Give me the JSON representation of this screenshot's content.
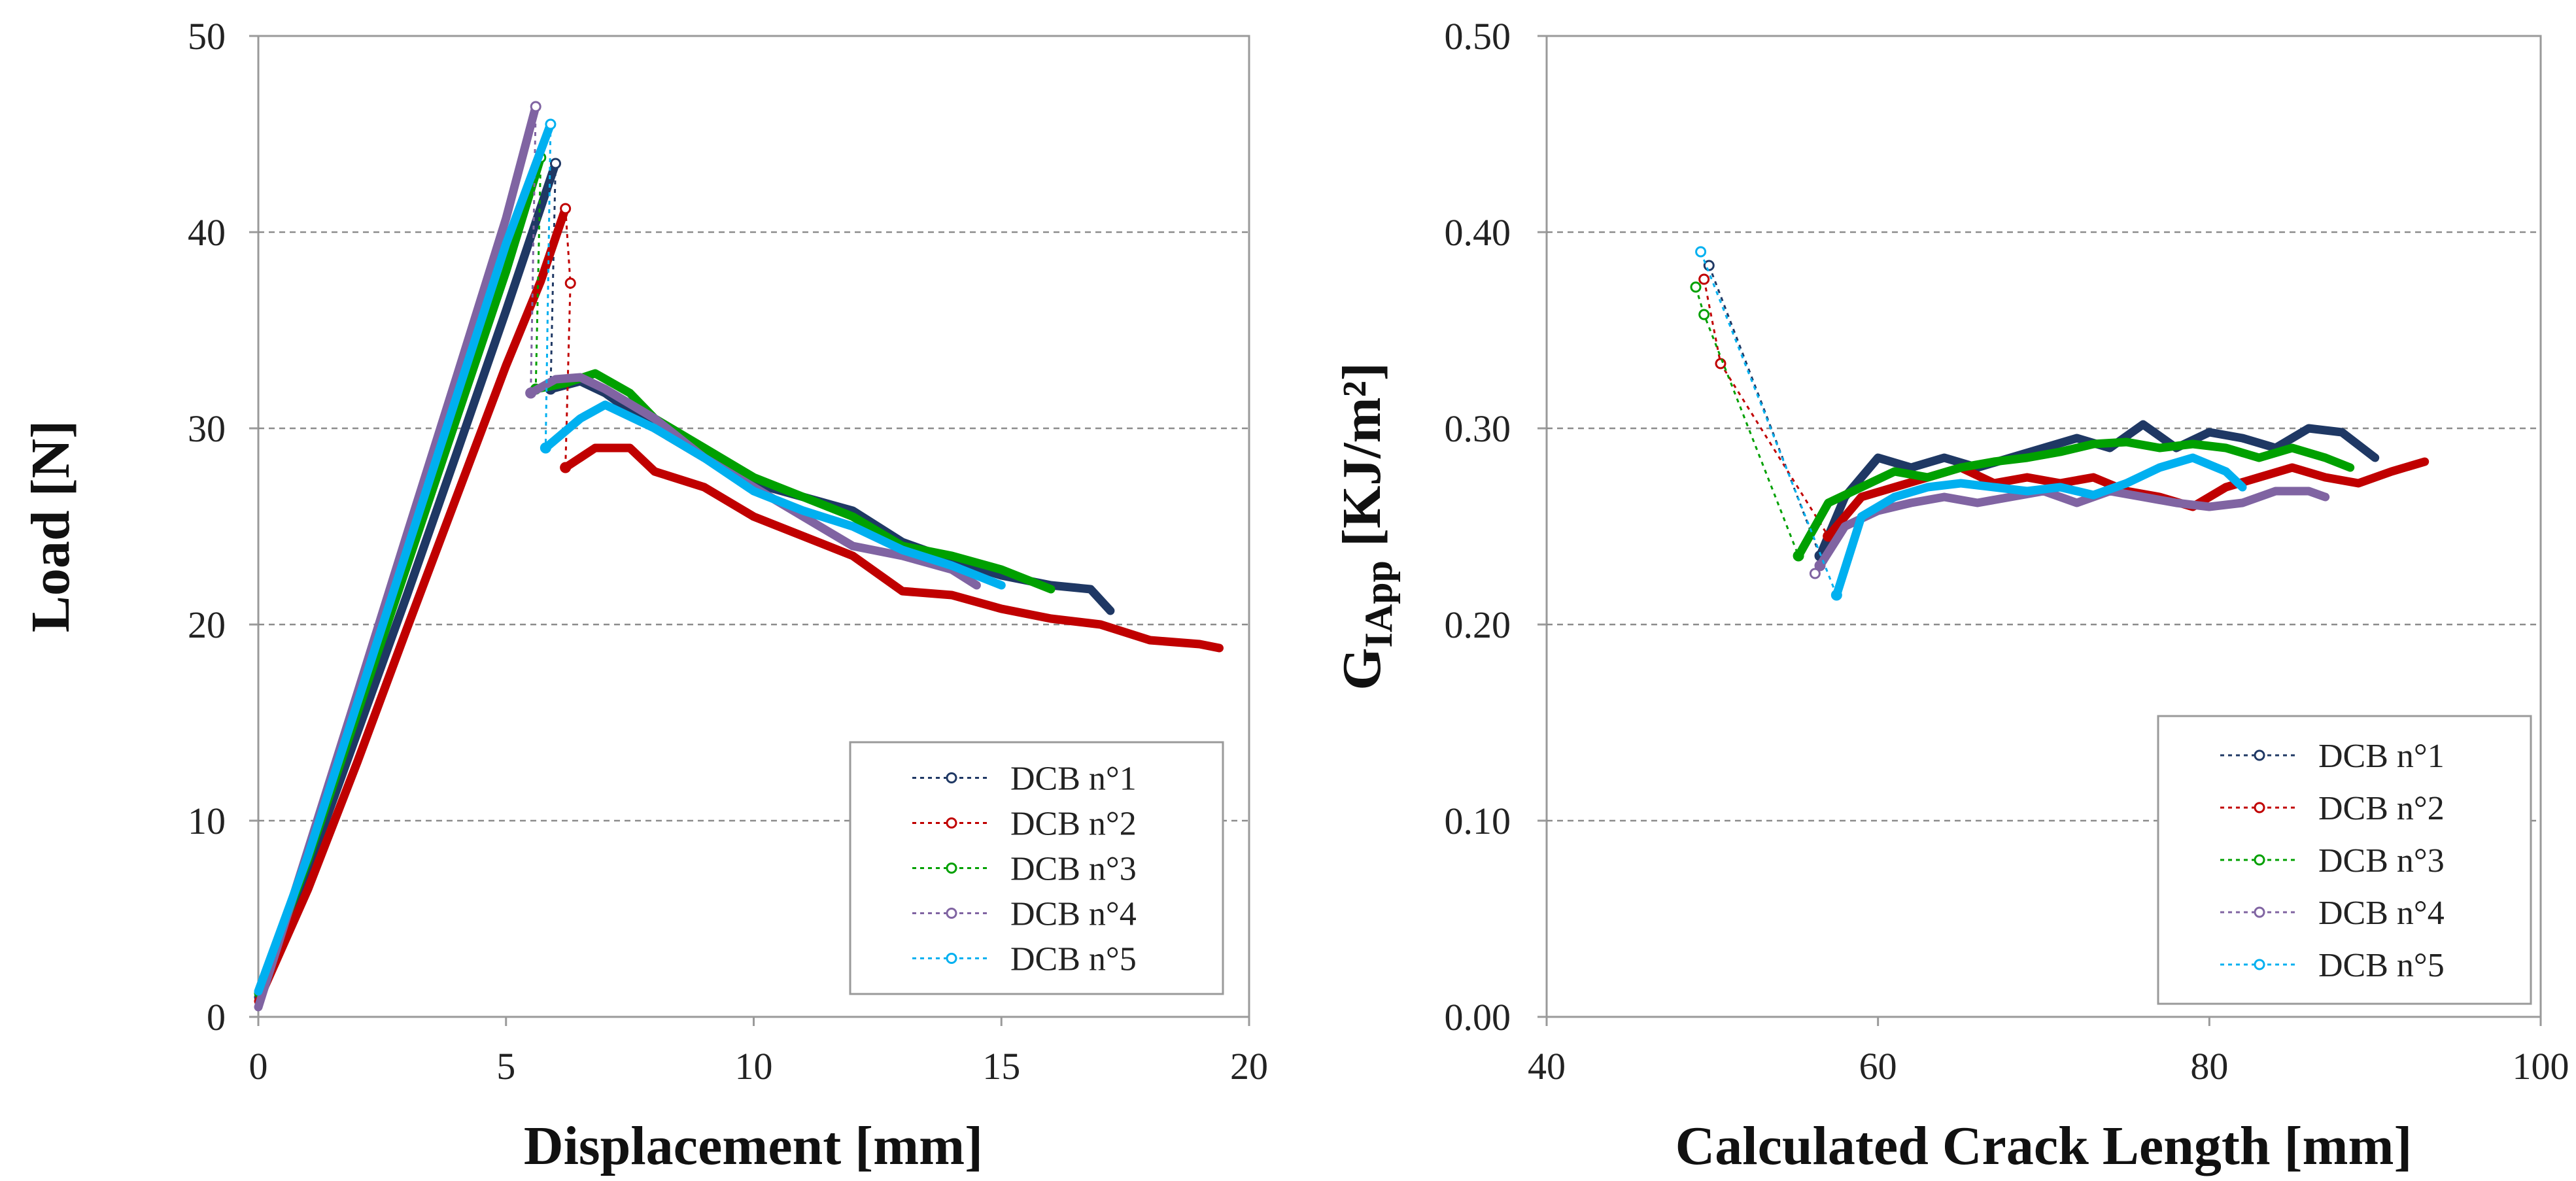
{
  "chart_data": [
    {
      "type": "line",
      "title": "",
      "xlabel": "Displacement [mm]",
      "ylabel": "Load [N]",
      "xlim": [
        0,
        20
      ],
      "ylim": [
        0,
        50
      ],
      "xticks": [
        0,
        5,
        10,
        15,
        20
      ],
      "yticks": [
        0,
        10,
        20,
        30,
        40,
        50
      ],
      "xtick_labels": [
        "0",
        "5",
        "10",
        "15",
        "20"
      ],
      "ytick_labels": [
        "0",
        "10",
        "20",
        "30",
        "40",
        "50"
      ],
      "grid": "horizontal dashed",
      "legend_position": "bottom-right",
      "series": [
        {
          "name": "DCB n°1",
          "color": "#1f3864",
          "loading": [
            [
              0.0,
              1.0
            ],
            [
              1.0,
              7.5
            ],
            [
              2.0,
              14.5
            ],
            [
              3.0,
              21.5
            ],
            [
              4.0,
              28.7
            ],
            [
              5.0,
              36.0
            ],
            [
              5.6,
              40.5
            ],
            [
              6.0,
              43.5
            ]
          ],
          "drop": [
            [
              6.0,
              43.5
            ],
            [
              5.9,
              32.0
            ]
          ],
          "propagation": [
            [
              5.9,
              32.0
            ],
            [
              6.5,
              32.4
            ],
            [
              7.0,
              31.8
            ],
            [
              8.0,
              30.0
            ],
            [
              9.0,
              28.5
            ],
            [
              10.0,
              27.2
            ],
            [
              11.0,
              26.5
            ],
            [
              12.0,
              25.8
            ],
            [
              13.0,
              24.2
            ],
            [
              14.0,
              23.3
            ],
            [
              15.0,
              22.5
            ],
            [
              16.0,
              22.0
            ],
            [
              16.8,
              21.8
            ],
            [
              17.2,
              20.7
            ]
          ]
        },
        {
          "name": "DCB n°2",
          "color": "#c00000",
          "loading": [
            [
              0.0,
              0.8
            ],
            [
              1.0,
              6.5
            ],
            [
              2.0,
              13.0
            ],
            [
              3.0,
              19.8
            ],
            [
              4.0,
              26.5
            ],
            [
              5.0,
              33.2
            ],
            [
              5.7,
              37.5
            ],
            [
              6.2,
              41.2
            ]
          ],
          "drop": [
            [
              6.2,
              41.2
            ],
            [
              6.3,
              37.4
            ],
            [
              6.2,
              28.0
            ]
          ],
          "propagation": [
            [
              6.2,
              28.0
            ],
            [
              6.8,
              29.0
            ],
            [
              7.5,
              29.0
            ],
            [
              8.0,
              27.8
            ],
            [
              9.0,
              27.0
            ],
            [
              10.0,
              25.5
            ],
            [
              11.0,
              24.5
            ],
            [
              12.0,
              23.5
            ],
            [
              13.0,
              21.7
            ],
            [
              14.0,
              21.5
            ],
            [
              15.0,
              20.8
            ],
            [
              16.0,
              20.3
            ],
            [
              17.0,
              20.0
            ],
            [
              18.0,
              19.2
            ],
            [
              19.0,
              19.0
            ],
            [
              19.4,
              18.8
            ]
          ]
        },
        {
          "name": "DCB n°3",
          "color": "#00a000",
          "loading": [
            [
              0.0,
              1.2
            ],
            [
              1.0,
              8.0
            ],
            [
              2.0,
              15.5
            ],
            [
              3.0,
              23.0
            ],
            [
              4.0,
              30.5
            ],
            [
              5.0,
              38.0
            ],
            [
              5.7,
              43.8
            ]
          ],
          "drop": [
            [
              5.7,
              43.8
            ],
            [
              5.6,
              32.0
            ]
          ],
          "propagation": [
            [
              5.6,
              32.0
            ],
            [
              6.2,
              32.3
            ],
            [
              6.8,
              32.8
            ],
            [
              7.5,
              31.8
            ],
            [
              8.0,
              30.5
            ],
            [
              9.0,
              29.0
            ],
            [
              10.0,
              27.5
            ],
            [
              11.0,
              26.5
            ],
            [
              12.0,
              25.5
            ],
            [
              13.0,
              24.0
            ],
            [
              14.0,
              23.5
            ],
            [
              15.0,
              22.8
            ],
            [
              16.0,
              21.8
            ]
          ]
        },
        {
          "name": "DCB n°4",
          "color": "#8064a2",
          "loading": [
            [
              0.0,
              0.5
            ],
            [
              1.0,
              8.5
            ],
            [
              2.0,
              16.5
            ],
            [
              3.0,
              24.6
            ],
            [
              4.0,
              32.6
            ],
            [
              5.0,
              40.7
            ],
            [
              5.6,
              46.4
            ]
          ],
          "drop": [
            [
              5.6,
              46.4
            ],
            [
              5.5,
              31.8
            ]
          ],
          "propagation": [
            [
              5.5,
              31.8
            ],
            [
              6.0,
              32.5
            ],
            [
              6.5,
              32.6
            ],
            [
              7.0,
              32.0
            ],
            [
              8.0,
              30.5
            ],
            [
              9.0,
              28.5
            ],
            [
              10.0,
              27.0
            ],
            [
              11.0,
              25.5
            ],
            [
              12.0,
              24.0
            ],
            [
              13.0,
              23.5
            ],
            [
              14.0,
              22.8
            ],
            [
              14.5,
              22.0
            ]
          ]
        },
        {
          "name": "DCB n°5",
          "color": "#00b0f0",
          "loading": [
            [
              0.0,
              1.3
            ],
            [
              1.0,
              8.2
            ],
            [
              2.0,
              16.0
            ],
            [
              3.0,
              23.8
            ],
            [
              4.0,
              31.6
            ],
            [
              5.0,
              39.4
            ],
            [
              5.9,
              45.5
            ]
          ],
          "drop": [
            [
              5.9,
              45.5
            ],
            [
              5.8,
              29.0
            ]
          ],
          "propagation": [
            [
              5.8,
              29.0
            ],
            [
              6.5,
              30.5
            ],
            [
              7.0,
              31.2
            ],
            [
              8.0,
              30.0
            ],
            [
              9.0,
              28.5
            ],
            [
              10.0,
              26.8
            ],
            [
              11.0,
              25.8
            ],
            [
              12.0,
              25.0
            ],
            [
              13.0,
              23.8
            ],
            [
              14.0,
              23.0
            ],
            [
              15.0,
              22.0
            ]
          ]
        }
      ]
    },
    {
      "type": "line",
      "title": "",
      "xlabel": "Calculated Crack Length [mm]",
      "ylabel_main": "G",
      "ylabel_sub": "IApp",
      "ylabel_unit": " [KJ/m²]",
      "xlim": [
        40,
        100
      ],
      "ylim": [
        0.0,
        0.5
      ],
      "xticks": [
        40,
        60,
        80,
        100
      ],
      "yticks": [
        0.0,
        0.1,
        0.2,
        0.3,
        0.4,
        0.5
      ],
      "xtick_labels": [
        "40",
        "60",
        "80",
        "100"
      ],
      "ytick_labels": [
        "0.00",
        "0.10",
        "0.20",
        "0.30",
        "0.40",
        "0.50"
      ],
      "grid": "horizontal dashed",
      "legend_position": "bottom-right",
      "series": [
        {
          "name": "DCB n°1",
          "color": "#1f3864",
          "initiation": [
            [
              49.8,
              0.383
            ],
            [
              56.5,
              0.235
            ]
          ],
          "propagation": [
            [
              56.5,
              0.235
            ],
            [
              58.0,
              0.265
            ],
            [
              60.0,
              0.285
            ],
            [
              62.0,
              0.28
            ],
            [
              64.0,
              0.285
            ],
            [
              66.0,
              0.28
            ],
            [
              68.0,
              0.285
            ],
            [
              70.0,
              0.29
            ],
            [
              72.0,
              0.295
            ],
            [
              74.0,
              0.29
            ],
            [
              76.0,
              0.302
            ],
            [
              78.0,
              0.29
            ],
            [
              80.0,
              0.298
            ],
            [
              82.0,
              0.295
            ],
            [
              84.0,
              0.29
            ],
            [
              86.0,
              0.3
            ],
            [
              88.0,
              0.298
            ],
            [
              90.0,
              0.285
            ]
          ]
        },
        {
          "name": "DCB n°2",
          "color": "#c00000",
          "initiation": [
            [
              49.5,
              0.376
            ],
            [
              50.5,
              0.333
            ],
            [
              57.0,
              0.245
            ]
          ],
          "propagation": [
            [
              57.0,
              0.245
            ],
            [
              59.0,
              0.265
            ],
            [
              61.0,
              0.27
            ],
            [
              63.0,
              0.275
            ],
            [
              65.0,
              0.28
            ],
            [
              67.0,
              0.272
            ],
            [
              69.0,
              0.275
            ],
            [
              71.0,
              0.272
            ],
            [
              73.0,
              0.275
            ],
            [
              75.0,
              0.268
            ],
            [
              77.0,
              0.265
            ],
            [
              79.0,
              0.26
            ],
            [
              81.0,
              0.27
            ],
            [
              83.0,
              0.275
            ],
            [
              85.0,
              0.28
            ],
            [
              87.0,
              0.275
            ],
            [
              89.0,
              0.272
            ],
            [
              91.0,
              0.278
            ],
            [
              93.0,
              0.283
            ]
          ]
        },
        {
          "name": "DCB n°3",
          "color": "#00a000",
          "initiation": [
            [
              49.0,
              0.372
            ],
            [
              49.5,
              0.358
            ],
            [
              55.2,
              0.235
            ]
          ],
          "propagation": [
            [
              55.2,
              0.235
            ],
            [
              57.0,
              0.262
            ],
            [
              59.0,
              0.27
            ],
            [
              61.0,
              0.278
            ],
            [
              63.0,
              0.275
            ],
            [
              65.0,
              0.28
            ],
            [
              67.0,
              0.283
            ],
            [
              69.0,
              0.285
            ],
            [
              71.0,
              0.288
            ],
            [
              73.0,
              0.292
            ],
            [
              75.0,
              0.293
            ],
            [
              77.0,
              0.29
            ],
            [
              79.0,
              0.292
            ],
            [
              81.0,
              0.29
            ],
            [
              83.0,
              0.285
            ],
            [
              85.0,
              0.29
            ],
            [
              87.0,
              0.285
            ],
            [
              88.5,
              0.28
            ]
          ]
        },
        {
          "name": "DCB n°4",
          "color": "#8064a2",
          "initiation": [
            [
              56.2,
              0.226
            ],
            [
              56.5,
              0.23
            ]
          ],
          "propagation": [
            [
              56.5,
              0.23
            ],
            [
              58.0,
              0.25
            ],
            [
              60.0,
              0.258
            ],
            [
              62.0,
              0.262
            ],
            [
              64.0,
              0.265
            ],
            [
              66.0,
              0.262
            ],
            [
              68.0,
              0.265
            ],
            [
              70.0,
              0.268
            ],
            [
              72.0,
              0.262
            ],
            [
              74.0,
              0.268
            ],
            [
              76.0,
              0.265
            ],
            [
              78.0,
              0.262
            ],
            [
              80.0,
              0.26
            ],
            [
              82.0,
              0.262
            ],
            [
              84.0,
              0.268
            ],
            [
              86.0,
              0.268
            ],
            [
              87.0,
              0.265
            ]
          ]
        },
        {
          "name": "DCB n°5",
          "color": "#00b0f0",
          "initiation": [
            [
              49.3,
              0.39
            ],
            [
              57.5,
              0.215
            ]
          ],
          "propagation": [
            [
              57.5,
              0.215
            ],
            [
              59.0,
              0.255
            ],
            [
              61.0,
              0.265
            ],
            [
              63.0,
              0.27
            ],
            [
              65.0,
              0.272
            ],
            [
              67.0,
              0.27
            ],
            [
              69.0,
              0.268
            ],
            [
              71.0,
              0.27
            ],
            [
              73.0,
              0.266
            ],
            [
              75.0,
              0.272
            ],
            [
              77.0,
              0.28
            ],
            [
              79.0,
              0.285
            ],
            [
              81.0,
              0.278
            ],
            [
              82.0,
              0.27
            ]
          ]
        }
      ]
    }
  ]
}
